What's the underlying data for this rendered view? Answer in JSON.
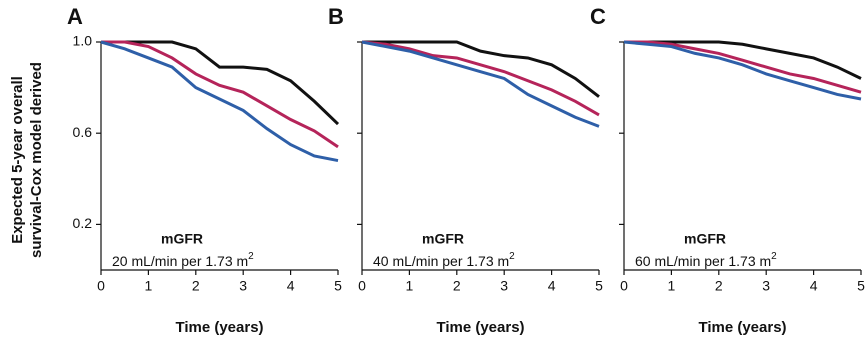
{
  "y_label": [
    "Expected 5-year overall",
    "survival-Cox model derived"
  ],
  "chart_data": [
    {
      "type": "line",
      "panel": "A",
      "x_label": "Time (years)",
      "annotation": "mGFR",
      "note": "20 mL/min per 1.73 m",
      "note_sup": "2",
      "x": [
        0,
        0.5,
        1,
        1.5,
        2,
        2.5,
        3,
        3.5,
        4,
        4.5,
        5
      ],
      "xlim": [
        0,
        5
      ],
      "xticks": [
        0,
        1,
        2,
        3,
        4,
        5
      ],
      "ylim": [
        0,
        1
      ],
      "yticks": [
        0.2,
        0.6,
        {
          "value": 1,
          "label": "1.0"
        }
      ],
      "show_ytick_labels": true,
      "series": [
        {
          "color": "#111111",
          "values": [
            1,
            1,
            1,
            1,
            0.97,
            0.89,
            0.89,
            0.88,
            0.83,
            0.74,
            0.64
          ]
        },
        {
          "color": "#b5245a",
          "values": [
            1,
            1,
            0.98,
            0.93,
            0.86,
            0.81,
            0.78,
            0.72,
            0.66,
            0.61,
            0.54
          ]
        },
        {
          "color": "#2e5fa8",
          "values": [
            1,
            0.97,
            0.93,
            0.89,
            0.8,
            0.75,
            0.7,
            0.62,
            0.55,
            0.5,
            0.48
          ]
        }
      ]
    },
    {
      "type": "line",
      "panel": "B",
      "x_label": "Time (years)",
      "annotation": "mGFR",
      "note": "40 mL/min per 1.73 m",
      "note_sup": "2",
      "x": [
        0,
        0.5,
        1,
        1.5,
        2,
        2.5,
        3,
        3.5,
        4,
        4.5,
        5
      ],
      "xlim": [
        0,
        5
      ],
      "xticks": [
        0,
        1,
        2,
        3,
        4,
        5
      ],
      "ylim": [
        0,
        1
      ],
      "yticks": [
        0.2,
        0.6,
        1
      ],
      "show_ytick_labels": false,
      "series": [
        {
          "color": "#111111",
          "values": [
            1,
            1,
            1,
            1,
            1,
            0.96,
            0.94,
            0.93,
            0.9,
            0.84,
            0.76
          ]
        },
        {
          "color": "#b5245a",
          "values": [
            1,
            0.99,
            0.97,
            0.94,
            0.93,
            0.9,
            0.87,
            0.83,
            0.79,
            0.74,
            0.68
          ]
        },
        {
          "color": "#2e5fa8",
          "values": [
            1,
            0.98,
            0.96,
            0.93,
            0.9,
            0.87,
            0.84,
            0.77,
            0.72,
            0.67,
            0.63
          ]
        }
      ]
    },
    {
      "type": "line",
      "panel": "C",
      "x_label": "Time (years)",
      "annotation": "mGFR",
      "note": "60 mL/min per 1.73 m",
      "note_sup": "2",
      "x": [
        0,
        0.5,
        1,
        1.5,
        2,
        2.5,
        3,
        3.5,
        4,
        4.5,
        5
      ],
      "xlim": [
        0,
        5
      ],
      "xticks": [
        0,
        1,
        2,
        3,
        4,
        5
      ],
      "ylim": [
        0,
        1
      ],
      "yticks": [
        0.2,
        0.6,
        1
      ],
      "show_ytick_labels": false,
      "series": [
        {
          "color": "#111111",
          "values": [
            1,
            1,
            1,
            1,
            1,
            0.99,
            0.97,
            0.95,
            0.93,
            0.89,
            0.84
          ]
        },
        {
          "color": "#b5245a",
          "values": [
            1,
            1,
            0.99,
            0.97,
            0.95,
            0.92,
            0.89,
            0.86,
            0.84,
            0.81,
            0.78
          ]
        },
        {
          "color": "#2e5fa8",
          "values": [
            1,
            0.99,
            0.98,
            0.95,
            0.93,
            0.9,
            0.86,
            0.83,
            0.8,
            0.77,
            0.75
          ]
        }
      ]
    }
  ]
}
